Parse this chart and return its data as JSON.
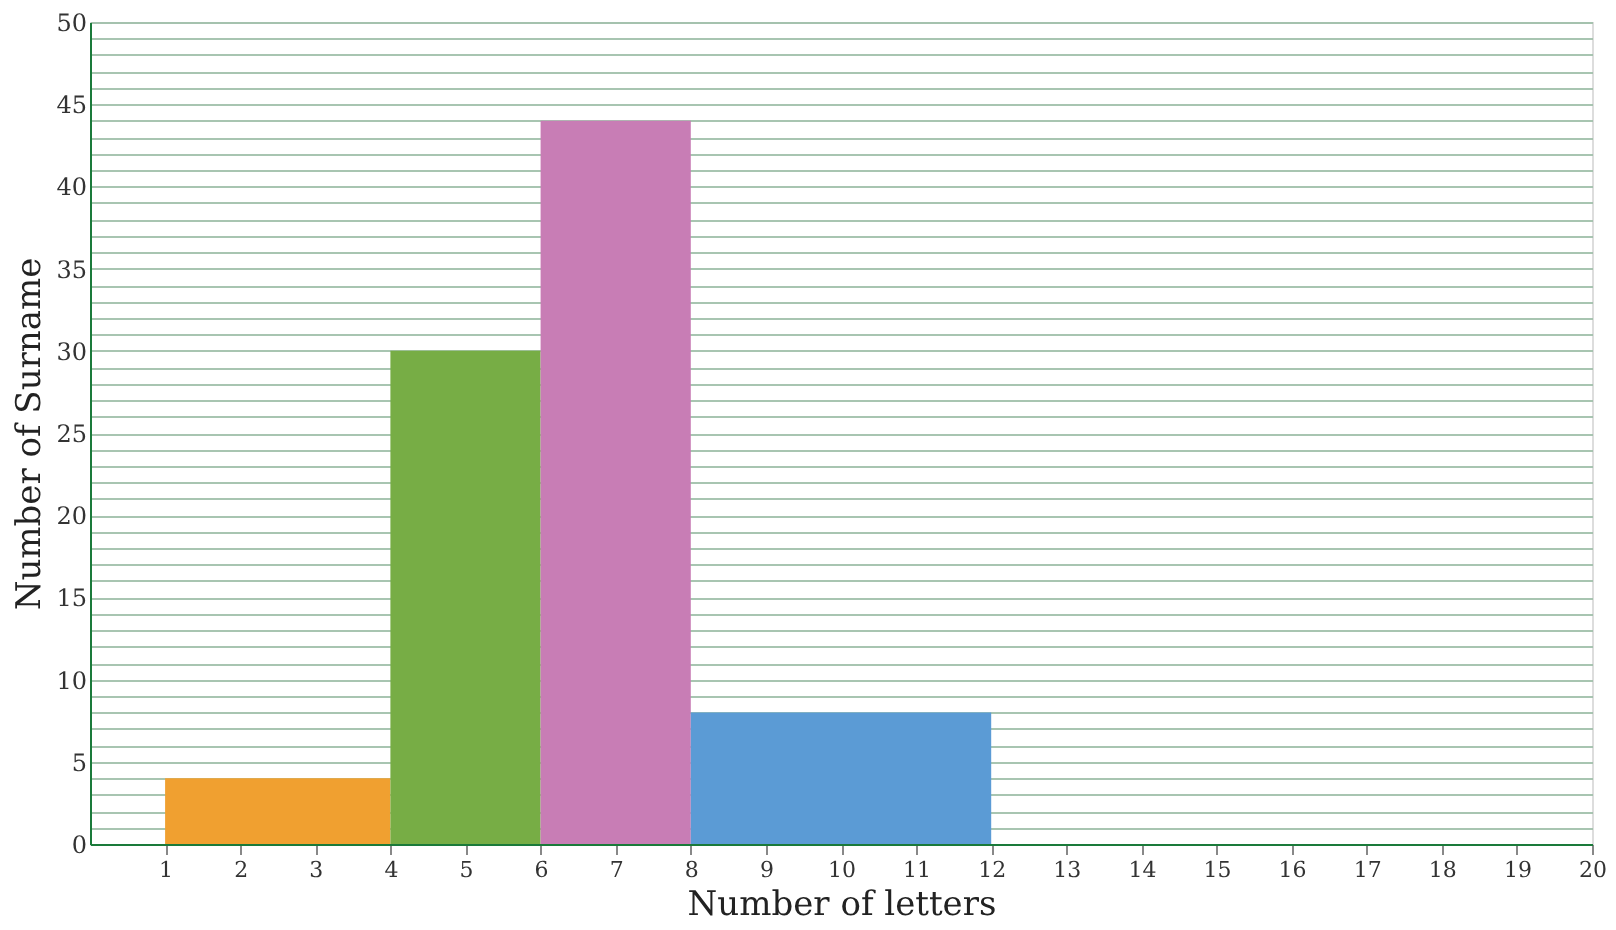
{
  "chart_data": {
    "type": "histogram",
    "xlabel": "Number of letters",
    "ylabel": "Number of Surname",
    "bins": [
      1,
      4,
      6,
      8,
      12
    ],
    "values": [
      4,
      30,
      44,
      8
    ],
    "colors": [
      "#f0a030",
      "#77ad45",
      "#c87db5",
      "#5b9bd5"
    ],
    "xlim": [
      0,
      20
    ],
    "xticks": [
      1,
      2,
      3,
      4,
      5,
      6,
      7,
      8,
      9,
      10,
      11,
      12,
      13,
      14,
      15,
      16,
      17,
      18,
      19,
      20
    ],
    "ylim": [
      0,
      50
    ],
    "yticks": [
      0,
      {
        "value": 1,
        "label": null
      },
      {
        "value": 2,
        "label": null
      },
      {
        "value": 3,
        "label": null
      },
      {
        "value": 4,
        "label": null
      },
      5,
      {
        "value": 6,
        "label": null
      },
      {
        "value": 7,
        "label": null
      },
      {
        "value": 8,
        "label": null
      },
      {
        "value": 9,
        "label": null
      },
      10,
      {
        "value": 11,
        "label": null
      },
      {
        "value": 12,
        "label": null
      },
      {
        "value": 13,
        "label": null
      },
      {
        "value": 14,
        "label": null
      },
      15,
      {
        "value": 16,
        "label": null
      },
      {
        "value": 17,
        "label": null
      },
      {
        "value": 18,
        "label": null
      },
      {
        "value": 19,
        "label": null
      },
      20,
      {
        "value": 21,
        "label": null
      },
      {
        "value": 22,
        "label": null
      },
      {
        "value": 23,
        "label": null
      },
      {
        "value": 24,
        "label": null
      },
      25,
      {
        "value": 26,
        "label": null
      },
      {
        "value": 27,
        "label": null
      },
      {
        "value": 28,
        "label": null
      },
      {
        "value": 29,
        "label": null
      },
      30,
      {
        "value": 31,
        "label": null
      },
      {
        "value": 32,
        "label": null
      },
      {
        "value": 33,
        "label": null
      },
      {
        "value": 34,
        "label": null
      },
      35,
      {
        "value": 36,
        "label": null
      },
      {
        "value": 37,
        "label": null
      },
      {
        "value": 38,
        "label": null
      },
      {
        "value": 39,
        "label": null
      },
      40,
      {
        "value": 41,
        "label": null
      },
      {
        "value": 42,
        "label": null
      },
      {
        "value": 43,
        "label": null
      },
      {
        "value": 44,
        "label": null
      },
      45,
      {
        "value": 46,
        "label": null
      },
      {
        "value": 47,
        "label": null
      },
      {
        "value": 48,
        "label": null
      },
      {
        "value": 49,
        "label": null
      },
      50
    ],
    "grid": "y"
  }
}
